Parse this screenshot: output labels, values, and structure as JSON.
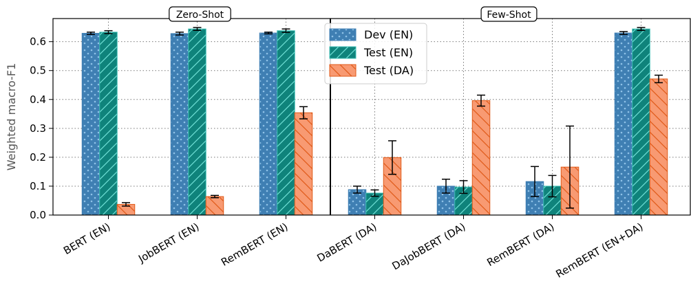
{
  "chart_data": {
    "type": "bar",
    "title": "",
    "xlabel": "",
    "ylabel": "Weighted macro-F1",
    "ylim": [
      0,
      0.68
    ],
    "yticks": [
      "0.0",
      "0.1",
      "0.2",
      "0.3",
      "0.4",
      "0.5",
      "0.6"
    ],
    "grid": true,
    "legend_position": "top-center",
    "categories": [
      "BERT (EN)",
      "JobBERT (EN)",
      "RemBERT (EN)",
      "DaBERT (DA)",
      "DaJobBERT (DA)",
      "RemBERT (DA)",
      "RemBERT (EN+DA)"
    ],
    "series": [
      {
        "name": "Dev (EN)",
        "color": "#3f7fb3",
        "pattern": "dots",
        "values": [
          0.629,
          0.628,
          0.63,
          0.088,
          0.1,
          0.116,
          0.63
        ],
        "errors": [
          0.004,
          0.005,
          0.003,
          0.012,
          0.024,
          0.052,
          0.005
        ]
      },
      {
        "name": "Test (EN)",
        "color": "#0f837b",
        "pattern": "forward-hatch",
        "values": [
          0.633,
          0.644,
          0.638,
          0.076,
          0.097,
          0.1,
          0.644
        ],
        "errors": [
          0.005,
          0.005,
          0.006,
          0.011,
          0.022,
          0.037,
          0.005
        ]
      },
      {
        "name": "Test (DA)",
        "color": "#f89a72",
        "pattern": "back-hatch",
        "values": [
          0.037,
          0.064,
          0.354,
          0.199,
          0.396,
          0.166,
          0.471
        ],
        "errors": [
          0.006,
          0.004,
          0.021,
          0.058,
          0.019,
          0.142,
          0.013
        ]
      }
    ],
    "sections": [
      "Zero-Shot",
      "Few-Shot"
    ]
  }
}
